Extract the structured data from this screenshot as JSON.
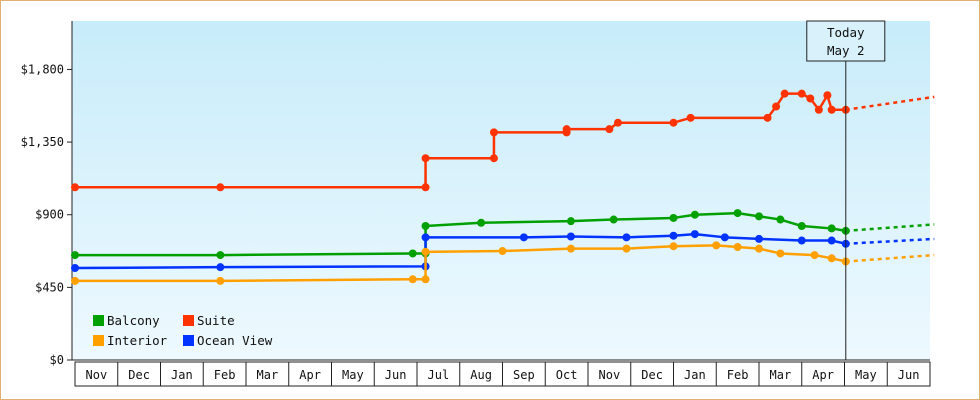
{
  "chart_data": {
    "type": "line",
    "title": "",
    "xlabel": "",
    "ylabel": "",
    "ylim": [
      0,
      2100
    ],
    "y_ticks": [
      {
        "value": 0,
        "label": "$0"
      },
      {
        "value": 450,
        "label": "$450"
      },
      {
        "value": 900,
        "label": "$900"
      },
      {
        "value": 1350,
        "label": "$1,350"
      },
      {
        "value": 1800,
        "label": "$1,800"
      }
    ],
    "x_months": [
      "Nov",
      "Dec",
      "Jan",
      "Feb",
      "Mar",
      "Apr",
      "May",
      "Jun",
      "Jul",
      "Aug",
      "Sep",
      "Oct",
      "Nov",
      "Dec",
      "Jan",
      "Feb",
      "Mar",
      "Apr",
      "May",
      "Jun"
    ],
    "today": {
      "line1": "Today",
      "line2": "May 2",
      "month_index": 18.03
    },
    "legend_placement": "bottom-left",
    "grid": false,
    "series": [
      {
        "name": "Suite",
        "color": "#ff3300",
        "points": [
          [
            0,
            1070
          ],
          [
            3.4,
            1070
          ],
          [
            8.2,
            1070
          ],
          [
            8.2,
            1250
          ],
          [
            9.8,
            1250
          ],
          [
            9.8,
            1410
          ],
          [
            11.5,
            1410
          ],
          [
            11.5,
            1430
          ],
          [
            12.5,
            1430
          ],
          [
            12.7,
            1470
          ],
          [
            14.0,
            1470
          ],
          [
            14.4,
            1500
          ],
          [
            16.2,
            1500
          ],
          [
            16.4,
            1570
          ],
          [
            16.6,
            1650
          ],
          [
            17.0,
            1650
          ],
          [
            17.2,
            1620
          ],
          [
            17.4,
            1550
          ],
          [
            17.6,
            1640
          ],
          [
            17.7,
            1550
          ],
          [
            18.03,
            1550
          ]
        ],
        "projection": [
          [
            18.03,
            1550
          ],
          [
            20.1,
            1630
          ]
        ]
      },
      {
        "name": "Balcony",
        "color": "#00a000",
        "points": [
          [
            0,
            650
          ],
          [
            3.4,
            650
          ],
          [
            7.9,
            660
          ],
          [
            8.2,
            660
          ],
          [
            8.2,
            830
          ],
          [
            9.5,
            850
          ],
          [
            11.6,
            860
          ],
          [
            12.6,
            870
          ],
          [
            14.0,
            880
          ],
          [
            14.5,
            900
          ],
          [
            15.5,
            910
          ],
          [
            16.0,
            890
          ],
          [
            16.5,
            870
          ],
          [
            17.0,
            830
          ],
          [
            17.7,
            815
          ],
          [
            18.03,
            800
          ]
        ],
        "projection": [
          [
            18.03,
            800
          ],
          [
            20.1,
            840
          ]
        ]
      },
      {
        "name": "Ocean View",
        "color": "#0033ff",
        "points": [
          [
            0,
            570
          ],
          [
            3.4,
            575
          ],
          [
            8.2,
            580
          ],
          [
            8.2,
            760
          ],
          [
            10.5,
            760
          ],
          [
            11.6,
            765
          ],
          [
            12.9,
            760
          ],
          [
            14.0,
            770
          ],
          [
            14.5,
            780
          ],
          [
            15.2,
            760
          ],
          [
            16.0,
            750
          ],
          [
            17.0,
            740
          ],
          [
            17.7,
            740
          ],
          [
            18.03,
            720
          ]
        ],
        "projection": [
          [
            18.03,
            720
          ],
          [
            20.1,
            750
          ]
        ]
      },
      {
        "name": "Interior",
        "color": "#ffa000",
        "points": [
          [
            0,
            490
          ],
          [
            3.4,
            490
          ],
          [
            7.9,
            500
          ],
          [
            8.2,
            500
          ],
          [
            8.2,
            670
          ],
          [
            10.0,
            675
          ],
          [
            11.6,
            690
          ],
          [
            12.9,
            690
          ],
          [
            14.0,
            705
          ],
          [
            15.0,
            710
          ],
          [
            15.5,
            700
          ],
          [
            16.0,
            690
          ],
          [
            16.5,
            660
          ],
          [
            17.3,
            650
          ],
          [
            17.7,
            630
          ],
          [
            18.03,
            610
          ]
        ],
        "projection": [
          [
            18.03,
            610
          ],
          [
            20.1,
            650
          ]
        ]
      }
    ]
  }
}
